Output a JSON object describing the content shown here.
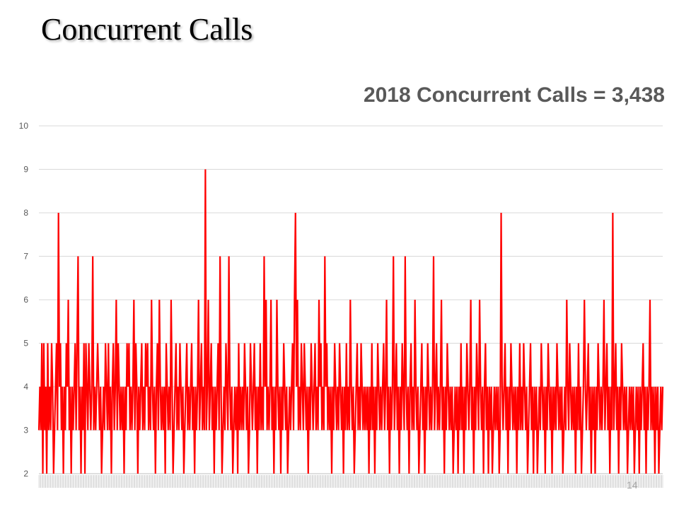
{
  "slide": {
    "title": "Concurrent Calls",
    "page_number": "14"
  },
  "chart_data": {
    "type": "line",
    "title": "2018 Concurrent Calls = 3,438",
    "xlabel": "",
    "ylabel": "",
    "ylim": [
      2,
      10
    ],
    "yticks": [
      2,
      3,
      4,
      5,
      6,
      7,
      8,
      9,
      10
    ],
    "grid": true,
    "legend": "none",
    "series": [
      {
        "color": "#ff0000",
        "values": [
          3,
          4,
          3,
          5,
          2,
          5,
          3,
          4,
          2,
          5,
          3,
          4,
          3,
          5,
          4,
          2,
          3,
          4,
          5,
          3,
          8,
          4,
          5,
          3,
          4,
          2,
          4,
          3,
          5,
          4,
          6,
          3,
          4,
          2,
          4,
          3,
          4,
          5,
          3,
          5,
          7,
          3,
          4,
          2,
          4,
          3,
          5,
          2,
          5,
          4,
          3,
          5,
          4,
          3,
          4,
          7,
          3,
          4,
          3,
          4,
          5,
          4,
          3,
          4,
          2,
          3,
          4,
          3,
          5,
          4,
          3,
          5,
          3,
          4,
          2,
          4,
          5,
          3,
          4,
          6,
          3,
          5,
          4,
          3,
          4,
          3,
          4,
          2,
          4,
          3,
          5,
          4,
          5,
          3,
          4,
          3,
          4,
          6,
          3,
          5,
          4,
          2,
          4,
          3,
          4,
          5,
          3,
          4,
          3,
          5,
          4,
          5,
          3,
          4,
          3,
          6,
          4,
          3,
          4,
          2,
          4,
          5,
          3,
          6,
          4,
          3,
          4,
          3,
          4,
          2,
          5,
          4,
          3,
          4,
          3,
          6,
          4,
          2,
          3,
          4,
          5,
          3,
          4,
          3,
          5,
          4,
          3,
          4,
          2,
          3,
          4,
          5,
          3,
          4,
          3,
          4,
          5,
          3,
          4,
          2,
          4,
          3,
          4,
          6,
          3,
          4,
          5,
          3,
          4,
          3,
          9,
          3,
          4,
          6,
          3,
          4,
          5,
          3,
          4,
          2,
          4,
          3,
          4,
          5,
          3,
          7,
          4,
          2,
          3,
          4,
          3,
          5,
          4,
          3,
          7,
          4,
          3,
          4,
          2,
          3,
          4,
          3,
          4,
          2,
          5,
          3,
          4,
          3,
          4,
          3,
          5,
          4,
          3,
          4,
          2,
          3,
          5,
          4,
          3,
          4,
          5,
          3,
          4,
          2,
          4,
          3,
          5,
          3,
          4,
          3,
          7,
          4,
          6,
          3,
          4,
          3,
          4,
          6,
          3,
          4,
          2,
          4,
          3,
          6,
          4,
          3,
          4,
          2,
          4,
          3,
          5,
          4,
          3,
          4,
          2,
          3,
          4,
          3,
          4,
          5,
          3,
          6,
          8,
          4,
          6,
          3,
          4,
          3,
          5,
          4,
          3,
          5,
          4,
          3,
          4,
          2,
          4,
          3,
          5,
          4,
          3,
          4,
          5,
          3,
          4,
          3,
          6,
          4,
          5,
          3,
          4,
          3,
          7,
          4,
          5,
          3,
          4,
          3,
          4,
          2,
          4,
          3,
          5,
          4,
          3,
          4,
          3,
          5,
          4,
          3,
          4,
          2,
          4,
          3,
          5,
          3,
          4,
          3,
          6,
          4,
          3,
          4,
          2,
          3,
          4,
          5,
          3,
          4,
          3,
          5,
          4,
          3,
          4,
          3,
          4,
          3,
          4,
          2,
          4,
          3,
          5,
          3,
          4,
          2,
          4,
          3,
          5,
          4,
          3,
          4,
          3,
          4,
          5,
          3,
          4,
          6,
          3,
          4,
          2,
          4,
          3,
          4,
          7,
          3,
          4,
          5,
          3,
          4,
          2,
          4,
          3,
          5,
          4,
          3,
          7,
          4,
          3,
          4,
          2,
          4,
          5,
          3,
          4,
          3,
          6,
          4,
          3,
          4,
          2,
          3,
          4,
          5,
          3,
          4,
          2,
          4,
          3,
          5,
          4,
          3,
          4,
          3,
          4,
          7,
          3,
          4,
          5,
          3,
          4,
          3,
          4,
          6,
          3,
          4,
          2,
          4,
          3,
          5,
          4,
          3,
          4,
          3,
          4,
          2,
          3,
          4,
          3,
          4,
          2,
          4,
          3,
          5,
          3,
          4,
          2,
          4,
          3,
          5,
          4,
          3,
          4,
          6,
          3,
          4,
          2,
          4,
          3,
          5,
          4,
          3,
          6,
          4,
          3,
          4,
          2,
          4,
          5,
          3,
          4,
          2,
          4,
          3,
          4,
          2,
          3,
          4,
          3,
          4,
          3,
          4,
          2,
          3,
          8,
          4,
          3,
          4,
          5,
          3,
          4,
          2,
          4,
          3,
          5,
          4,
          3,
          4,
          3,
          4,
          2,
          4,
          3,
          5,
          3,
          4,
          3,
          5,
          4,
          3,
          4,
          2,
          3,
          4,
          5,
          3,
          4,
          2,
          4,
          3,
          4,
          2,
          3,
          4,
          3,
          5,
          4,
          3,
          4,
          2,
          4,
          3,
          5,
          4,
          3,
          4,
          2,
          4,
          3,
          4,
          3,
          5,
          4,
          3,
          4,
          3,
          4,
          2,
          3,
          4,
          3,
          6,
          4,
          3,
          5,
          4,
          3,
          4,
          3,
          4,
          2,
          4,
          3,
          5,
          3,
          4,
          2,
          3,
          4,
          6,
          4,
          3,
          4,
          5,
          3,
          4,
          2,
          4,
          3,
          4,
          2,
          4,
          3,
          5,
          4,
          3,
          4,
          3,
          4,
          6,
          3,
          4,
          5,
          3,
          4,
          2,
          4,
          3,
          8,
          3,
          4,
          5,
          3,
          4,
          2,
          4,
          3,
          5,
          4,
          3,
          4,
          3,
          4,
          2,
          3,
          4,
          3,
          4,
          3,
          4,
          2,
          3,
          4,
          3,
          4,
          2,
          4,
          3,
          4,
          5,
          3,
          4,
          2,
          4,
          3,
          4,
          6,
          3,
          4,
          3,
          4,
          2,
          4,
          3,
          4,
          2,
          3,
          4,
          3,
          4
        ]
      }
    ]
  }
}
